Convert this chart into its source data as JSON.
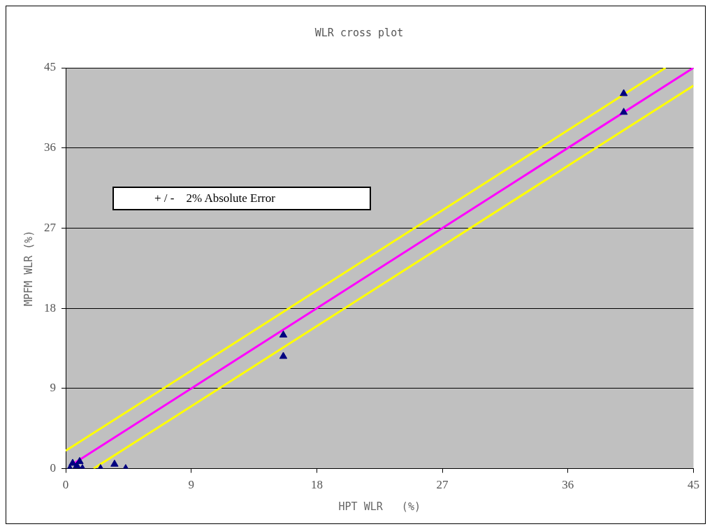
{
  "chart_data": {
    "type": "scatter",
    "title": "WLR cross plot",
    "xlabel": "HPT WLR   (%)",
    "ylabel": "MPFM WLR (%)",
    "xlim": [
      0,
      45
    ],
    "xticks": [
      0,
      9,
      18,
      27,
      36,
      45
    ],
    "ylim": [
      0,
      45
    ],
    "yticks": [
      0,
      9,
      18,
      27,
      36,
      45
    ],
    "grid": "y",
    "legend": false,
    "marker": "triangle",
    "annotations": [
      "+ / -    2% Absolute Error"
    ],
    "series": [
      {
        "type": "line",
        "color": "#ff00ff",
        "x": [
          0.5,
          45
        ],
        "values": [
          0.5,
          45
        ],
        "marker": "none"
      },
      {
        "type": "line",
        "color": "#ffff00",
        "x": [
          0,
          43
        ],
        "values": [
          2,
          45
        ],
        "marker": "none"
      },
      {
        "type": "line",
        "color": "#ffff00",
        "x": [
          2,
          45
        ],
        "values": [
          0,
          43
        ],
        "marker": "none"
      },
      {
        "type": "scatter",
        "color": "#000080",
        "x": [
          0.3,
          0.5,
          0.8,
          1.0,
          1.2,
          2.5,
          3.5,
          4.3,
          15.6,
          15.6,
          40.0,
          40.0
        ],
        "values": [
          0,
          0.6,
          0.3,
          0.8,
          0,
          0,
          0.5,
          0,
          15.0,
          12.6,
          42.1,
          40.0
        ]
      }
    ]
  }
}
